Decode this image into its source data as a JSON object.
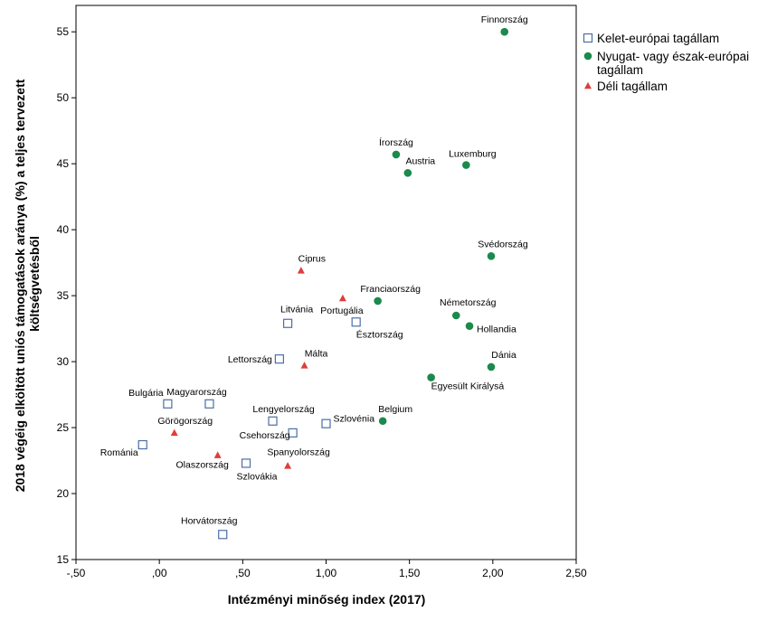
{
  "chart_data": {
    "type": "scatter",
    "title": "",
    "xlabel": "Intézményi minőség index (2017)",
    "ylabel_lines": [
      "2018 végéig elköltött uniós támogatások aránya (%) a teljes tervezett",
      "költségvetésből"
    ],
    "xlim": [
      -0.5,
      2.5
    ],
    "ylim": [
      15,
      57
    ],
    "xticks": [
      -0.5,
      0,
      0.5,
      1,
      1.5,
      2,
      2.5
    ],
    "xtick_labels": [
      "-,50",
      ",00",
      ",50",
      "1,00",
      "1,50",
      "2,00",
      "2,50"
    ],
    "yticks": [
      15,
      20,
      25,
      30,
      35,
      40,
      45,
      50,
      55
    ],
    "ytick_labels": [
      "15",
      "20",
      "25",
      "30",
      "35",
      "40",
      "45",
      "50",
      "55"
    ],
    "legend": [
      {
        "key": "east",
        "lines": [
          "Kelet-európai tagállam"
        ],
        "marker": "square",
        "color": "#4a6fa5"
      },
      {
        "key": "west",
        "lines": [
          "Nyugat- vagy észak-európai",
          "tagállam"
        ],
        "marker": "circle",
        "color": "#1b8a4c"
      },
      {
        "key": "south",
        "lines": [
          "Déli tagállam"
        ],
        "marker": "triangle",
        "color": "#e03c3c"
      }
    ],
    "series": [
      {
        "name": "Kelet-európai tagállam",
        "key": "east",
        "points": [
          {
            "label": "Horvátország",
            "x": 0.38,
            "y": 16.9
          },
          {
            "label": "Románia",
            "x": -0.1,
            "y": 23.7
          },
          {
            "label": "Bulgária",
            "x": 0.05,
            "y": 26.8
          },
          {
            "label": "Magyarország",
            "x": 0.3,
            "y": 26.8
          },
          {
            "label": "Szlovákia",
            "x": 0.52,
            "y": 22.3
          },
          {
            "label": "Lengyelország",
            "x": 0.68,
            "y": 25.5
          },
          {
            "label": "Csehország",
            "x": 0.8,
            "y": 24.6
          },
          {
            "label": "Szlovénia",
            "x": 1.0,
            "y": 25.3
          },
          {
            "label": "Lettország",
            "x": 0.72,
            "y": 30.2
          },
          {
            "label": "Litvánia",
            "x": 0.77,
            "y": 32.9
          },
          {
            "label": "Észtország",
            "x": 1.18,
            "y": 33.0
          }
        ]
      },
      {
        "name": "Nyugat- vagy észak-európai tagállam",
        "key": "west",
        "points": [
          {
            "label": "Finnország",
            "x": 2.07,
            "y": 55.0
          },
          {
            "label": "Írország",
            "x": 1.42,
            "y": 45.7
          },
          {
            "label": "Austria",
            "x": 1.49,
            "y": 44.3
          },
          {
            "label": "Luxemburg",
            "x": 1.84,
            "y": 44.9
          },
          {
            "label": "Svédország",
            "x": 1.99,
            "y": 38.0
          },
          {
            "label": "Franciaország",
            "x": 1.31,
            "y": 34.6
          },
          {
            "label": "Németország",
            "x": 1.78,
            "y": 33.5
          },
          {
            "label": "Hollandia",
            "x": 1.86,
            "y": 32.7
          },
          {
            "label": "Dánia",
            "x": 1.99,
            "y": 29.6
          },
          {
            "label": "Egyesült Királysá",
            "x": 1.63,
            "y": 28.8
          },
          {
            "label": "Belgium",
            "x": 1.34,
            "y": 25.5
          }
        ]
      },
      {
        "name": "Déli tagállam",
        "key": "south",
        "points": [
          {
            "label": "Ciprus",
            "x": 0.85,
            "y": 36.9
          },
          {
            "label": "Portugália",
            "x": 1.1,
            "y": 34.8
          },
          {
            "label": "Málta",
            "x": 0.87,
            "y": 29.7
          },
          {
            "label": "Görögország",
            "x": 0.09,
            "y": 24.6
          },
          {
            "label": "Olaszország",
            "x": 0.35,
            "y": 22.9
          },
          {
            "label": "Spanyolország",
            "x": 0.77,
            "y": 22.1
          }
        ]
      }
    ]
  }
}
